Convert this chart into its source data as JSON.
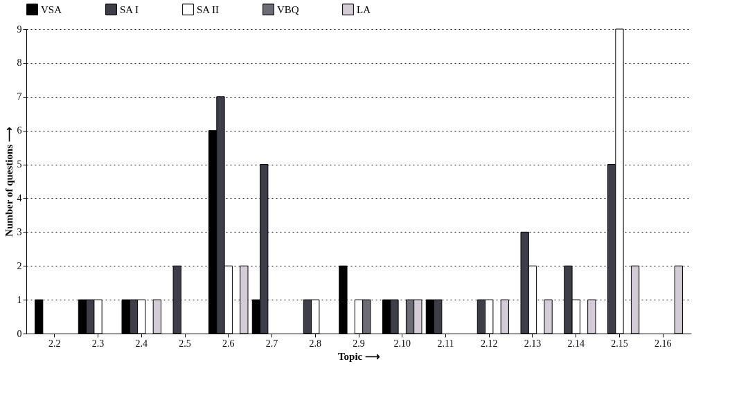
{
  "chart_data": {
    "type": "bar",
    "xlabel": "Topic ⟶",
    "ylabel": "Number of questions ⟶",
    "categories": [
      "2.2",
      "2.3",
      "2.4",
      "2.5",
      "2.6",
      "2.7",
      "2.8",
      "2.9",
      "2.10",
      "2.11",
      "2.12",
      "2.13",
      "2.14",
      "2.15",
      "2.16"
    ],
    "series": [
      {
        "name": "VSA",
        "color": "#000000",
        "values": [
          1,
          1,
          1,
          null,
          6,
          1,
          null,
          2,
          1,
          1,
          null,
          null,
          null,
          null,
          null
        ]
      },
      {
        "name": "SA I",
        "color": "#3d3e48",
        "values": [
          null,
          1,
          1,
          2,
          7,
          5,
          1,
          null,
          1,
          1,
          1,
          3,
          2,
          5,
          null
        ]
      },
      {
        "name": "SA II",
        "color": "#ffffff",
        "values": [
          null,
          1,
          1,
          null,
          2,
          null,
          1,
          1,
          null,
          null,
          1,
          2,
          1,
          9,
          null
        ]
      },
      {
        "name": "VBQ",
        "color": "#6b6c74",
        "values": [
          null,
          null,
          null,
          null,
          null,
          null,
          null,
          1,
          1,
          null,
          null,
          null,
          null,
          null,
          null
        ]
      },
      {
        "name": "LA",
        "color": "#d3ccd6",
        "values": [
          null,
          null,
          1,
          null,
          2,
          null,
          null,
          null,
          1,
          null,
          1,
          1,
          1,
          2,
          2
        ]
      }
    ],
    "ylim": [
      0,
      9
    ],
    "yticks": [
      0,
      1,
      2,
      3,
      4,
      5,
      6,
      7,
      8,
      9
    ],
    "grid": "y",
    "legend": "top"
  }
}
